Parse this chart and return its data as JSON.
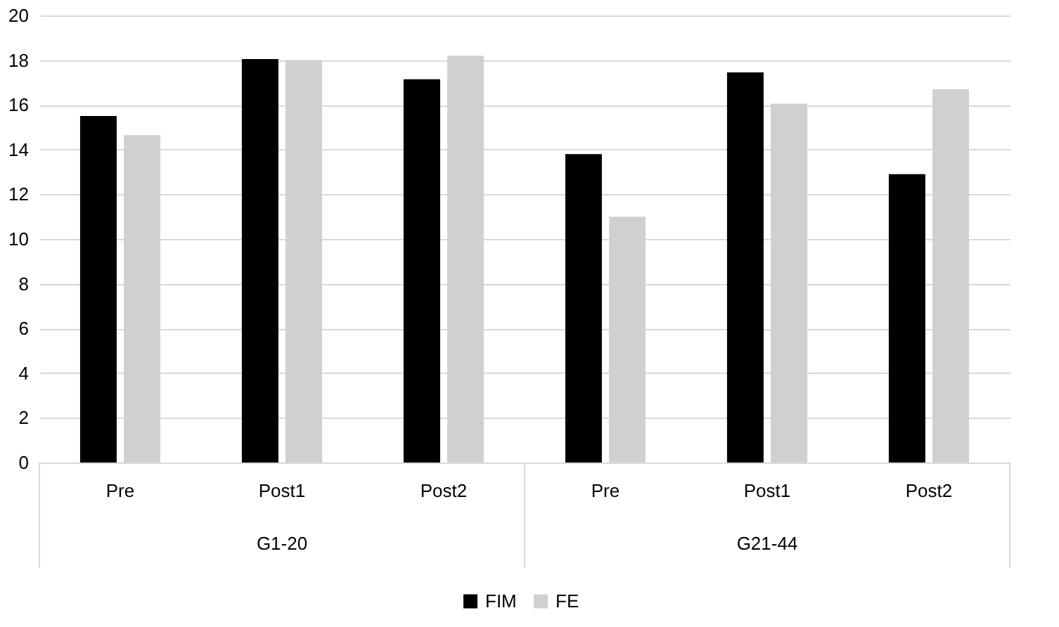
{
  "chart_data": {
    "type": "bar",
    "categories": [
      "Pre",
      "Post1",
      "Post2",
      "Pre",
      "Post1",
      "Post2"
    ],
    "series": [
      {
        "name": "FIM",
        "color": "#000000",
        "values": [
          15.5,
          18.05,
          17.15,
          13.8,
          17.45,
          12.9
        ]
      },
      {
        "name": "FE",
        "color": "#d0d0d0",
        "values": [
          14.65,
          18.0,
          18.2,
          11.0,
          16.05,
          16.7
        ]
      }
    ],
    "annotations": [
      "G1-20",
      "G21-44"
    ],
    "ylim": [
      0,
      20
    ],
    "yticks": [
      0,
      2,
      4,
      6,
      8,
      10,
      12,
      14,
      16,
      18,
      20
    ],
    "grid": "y",
    "legend": "bottom"
  }
}
